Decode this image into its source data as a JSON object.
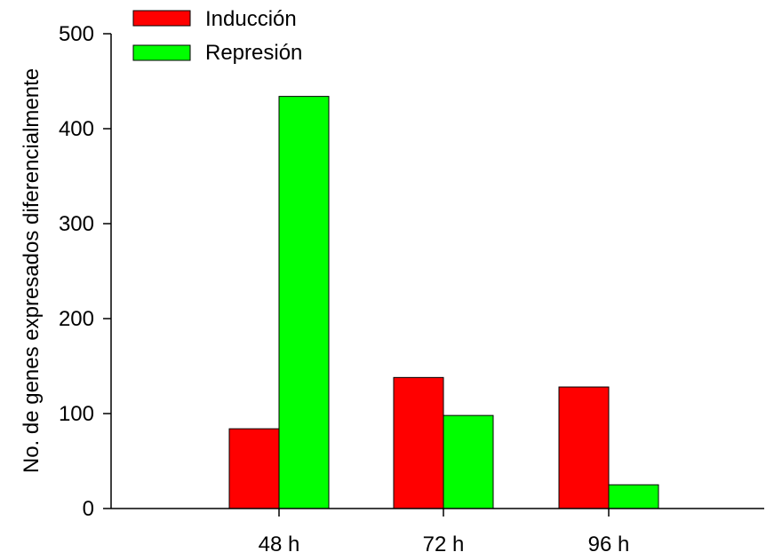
{
  "chart_data": {
    "type": "bar",
    "title": "",
    "xlabel": "",
    "ylabel": "No. de genes expresados diferencialmente",
    "categories": [
      "48 h",
      "72 h",
      "96 h"
    ],
    "series": [
      {
        "name": "Inducción",
        "values": [
          84,
          138,
          128
        ],
        "color": "#ff0000"
      },
      {
        "name": "Represión",
        "values": [
          434,
          98,
          25
        ],
        "color": "#00ff00"
      }
    ],
    "ylim": [
      0,
      500
    ],
    "yticks": [
      0,
      100,
      200,
      300,
      400,
      500
    ],
    "grid": false,
    "legend_position": "top-left"
  }
}
